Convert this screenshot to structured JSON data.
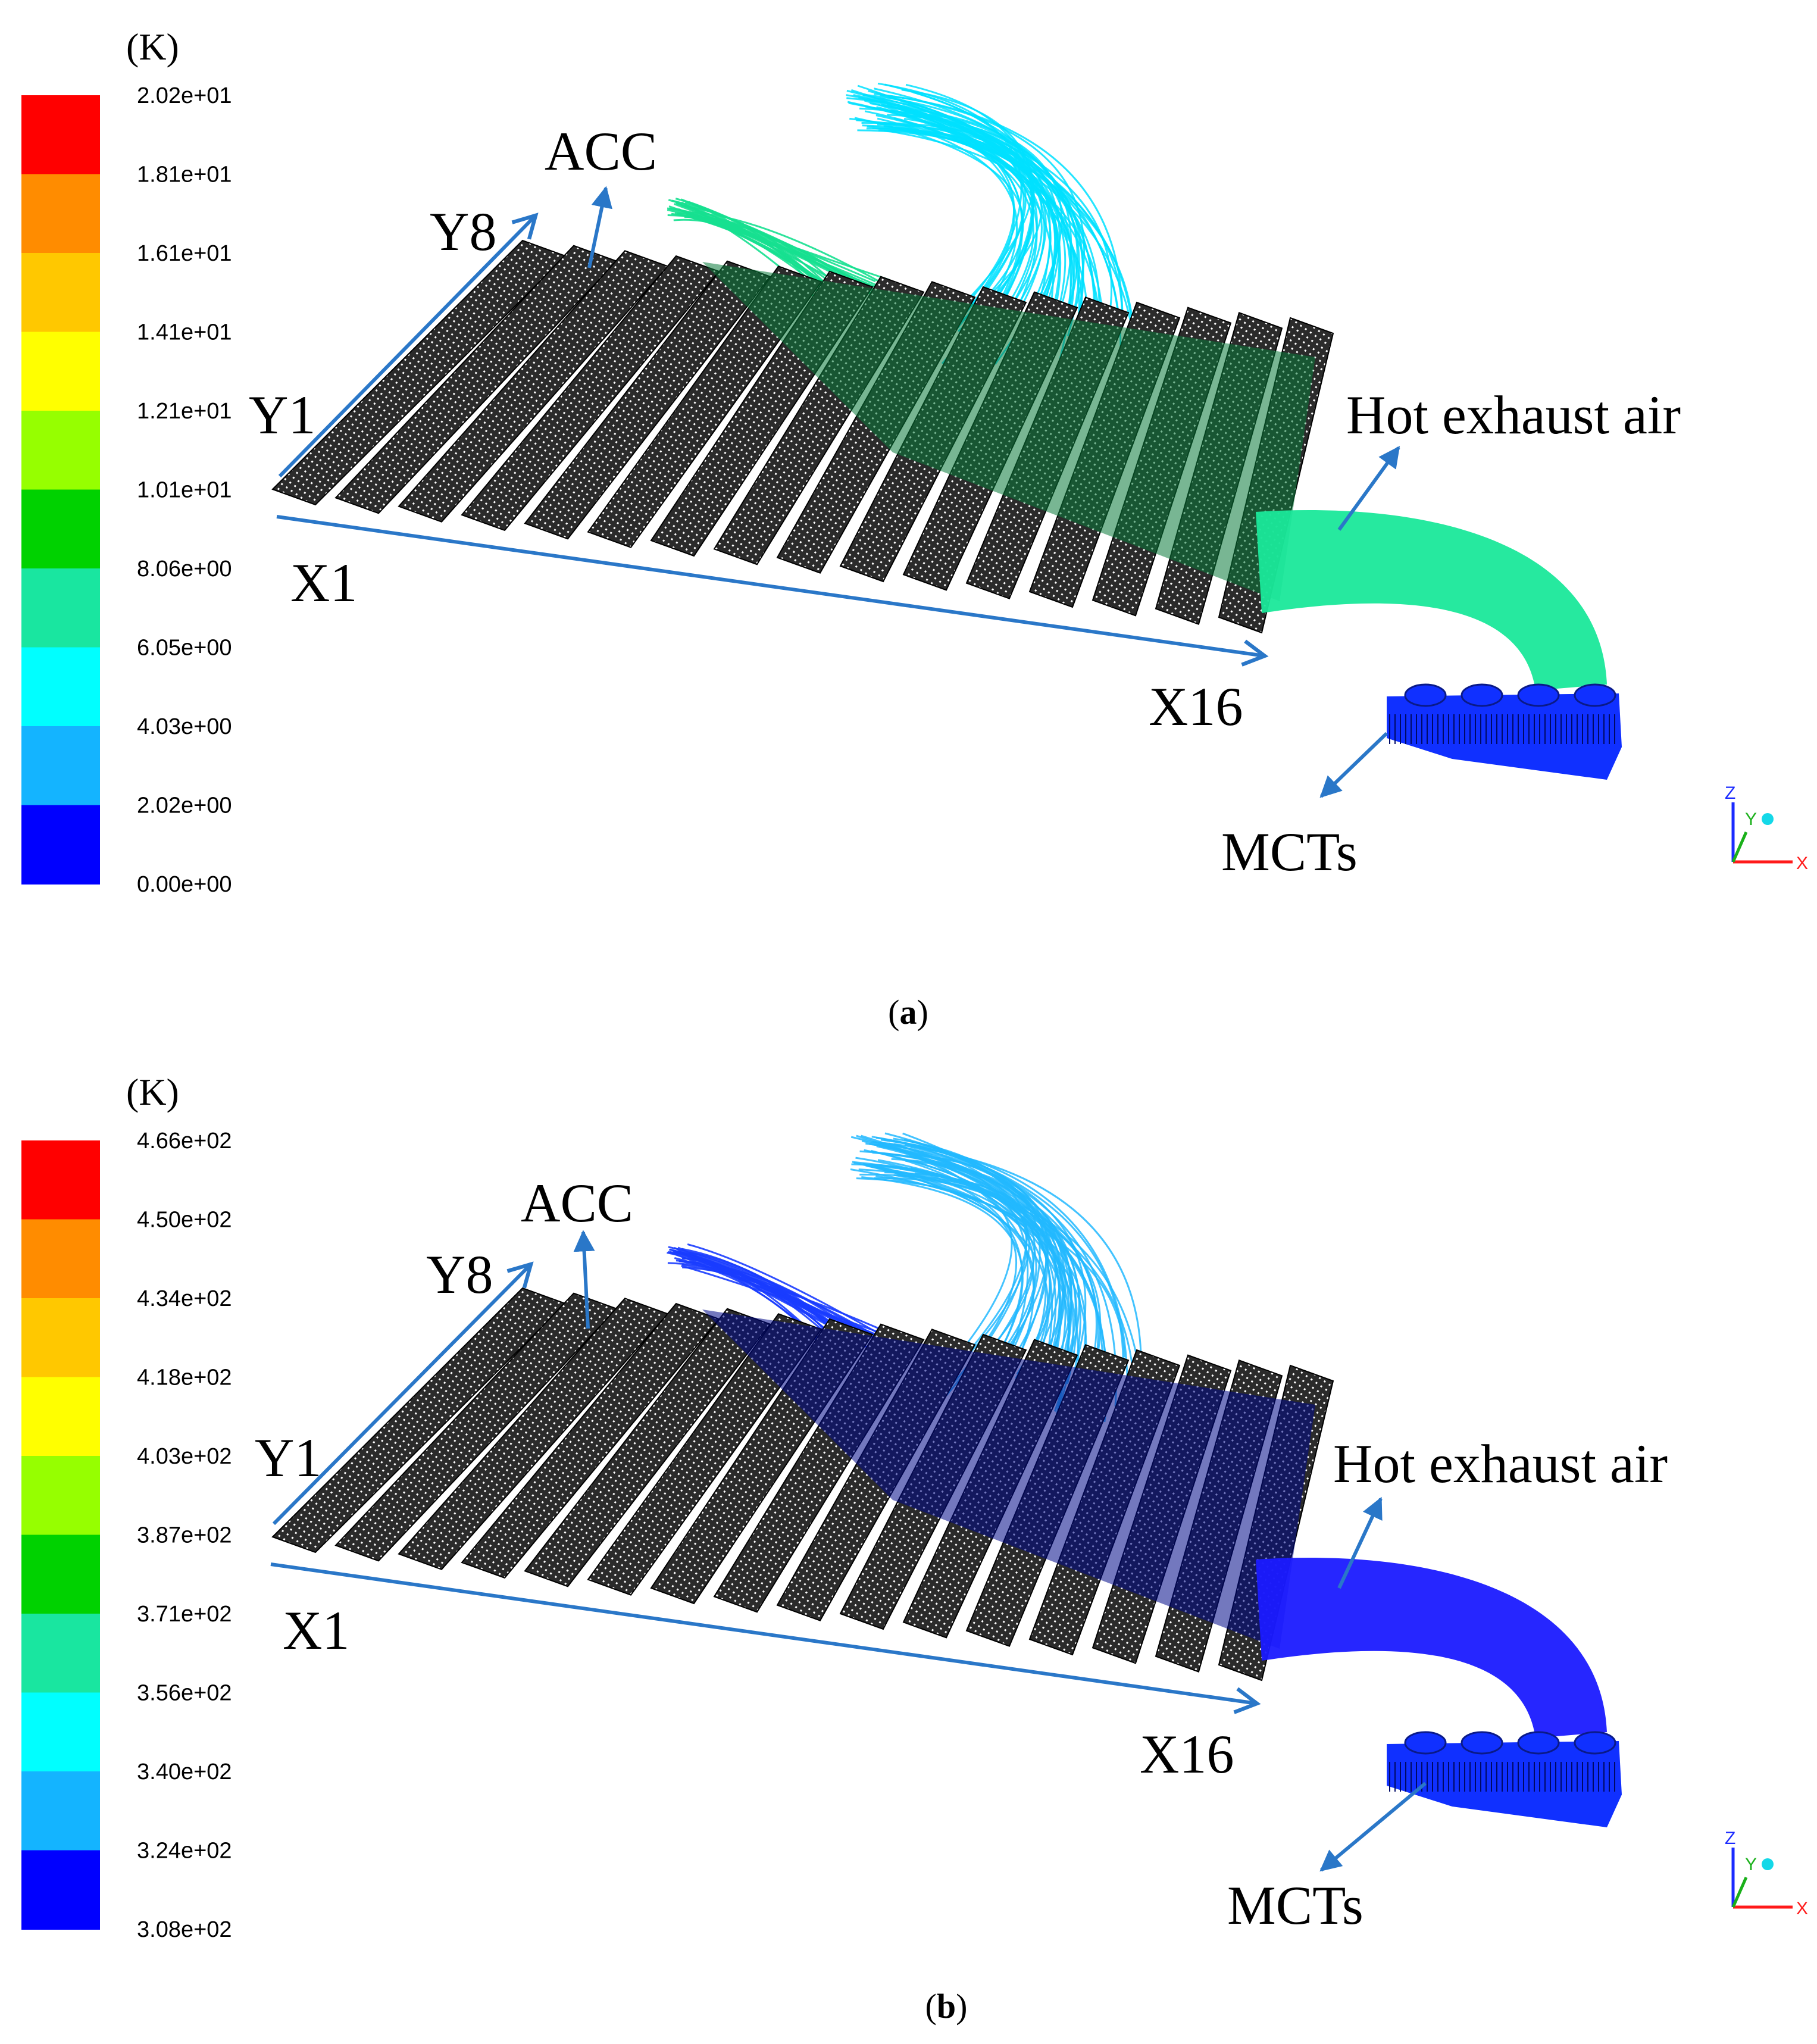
{
  "figure": {
    "panels": [
      {
        "id": "a",
        "caption_open": "(",
        "caption_letter": "a",
        "caption_close": ")",
        "unit": "(K)",
        "colorbar_ticks": [
          "2.02e+01",
          "1.81e+01",
          "1.61e+01",
          "1.41e+01",
          "1.21e+01",
          "1.01e+01",
          "8.06e+00",
          "6.05e+00",
          "4.03e+00",
          "2.02e+00",
          "0.00e+00"
        ],
        "labels": {
          "acc": "ACC",
          "y8": "Y8",
          "y1": "Y1",
          "x1": "X1",
          "x16": "X16",
          "hot": "Hot exhaust air",
          "mcts": "MCTs"
        },
        "streak_color": "#00e0ff",
        "streak_color2": "#16e090",
        "duct_color": "#1ae89a",
        "overlay_color": "#0a7a3a",
        "mct_color": "#1030ff"
      },
      {
        "id": "b",
        "caption_open": "(",
        "caption_letter": "b",
        "caption_close": ")",
        "unit": "(K)",
        "colorbar_ticks": [
          "4.66e+02",
          "4.50e+02",
          "4.34e+02",
          "4.18e+02",
          "4.03e+02",
          "3.87e+02",
          "3.71e+02",
          "3.56e+02",
          "3.40e+02",
          "3.24e+02",
          "3.08e+02"
        ],
        "labels": {
          "acc": "ACC",
          "y8": "Y8",
          "y1": "Y1",
          "x1": "X1",
          "x16": "X16",
          "hot": "Hot exhaust air",
          "mcts": "MCTs"
        },
        "streak_color": "#22b8ff",
        "streak_color2": "#1a3cff",
        "duct_color": "#1a1aff",
        "overlay_color": "#000a88",
        "mct_color": "#1030ff"
      }
    ],
    "colorbar_colors": [
      "#ff0000",
      "#ff8c00",
      "#ffc800",
      "#ffff00",
      "#96ff00",
      "#00d200",
      "#19e6a0",
      "#00ffff",
      "#14b4ff",
      "#0000ff"
    ],
    "triad": {
      "z": "Z",
      "y": "Y",
      "x": "X"
    },
    "arrow_color": "#2a77c8"
  }
}
